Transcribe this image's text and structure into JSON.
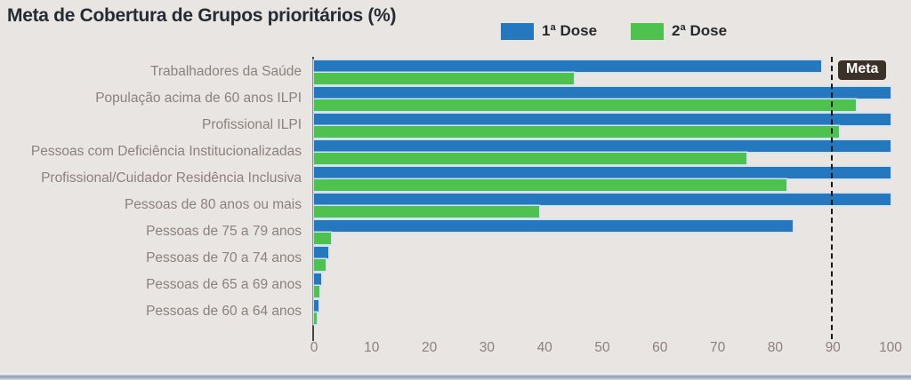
{
  "chart_data": {
    "type": "bar",
    "orientation": "horizontal",
    "title": "Meta de Cobertura de Grupos prioritários (%)",
    "categories": [
      "Trabalhadores da Saúde",
      "População acima de 60 anos ILPI",
      "Profissional ILPI",
      "Pessoas com Deficiência Institucionalizadas",
      "Profissional/Cuidador Residência Inclusiva",
      "Pessoas de 80 anos ou mais",
      "Pessoas de 75 a 79 anos",
      "Pessoas de 70 a 74 anos",
      "Pessoas de 65 a 69 anos",
      "Pessoas de 60 a 64 anos"
    ],
    "series": [
      {
        "name": "1ª Dose",
        "color": "#2577be",
        "values": [
          88,
          100,
          100,
          100,
          100,
          100,
          83,
          2.5,
          1.2,
          0.8
        ]
      },
      {
        "name": "2ª Dose",
        "color": "#4fc14f",
        "values": [
          45,
          94,
          91,
          75,
          82,
          39,
          3,
          2,
          1,
          0.4
        ]
      }
    ],
    "xlim": [
      0,
      100
    ],
    "xticks": [
      0,
      10,
      20,
      30,
      40,
      50,
      60,
      70,
      80,
      90,
      100
    ],
    "meta_line": {
      "value": 90,
      "label": "Meta"
    },
    "legend_position": "top-right",
    "grid": false
  },
  "colors": {
    "background": "#e9e5e2",
    "dose1_blue": "#2577be",
    "dose2_green": "#4fc14f",
    "axis_text": "#8c817c",
    "title_text": "#262b33",
    "axis_line": "#4a443e",
    "meta_line": "#151515",
    "meta_box_bg": "#3a3129",
    "meta_box_text": "#ffffff"
  }
}
